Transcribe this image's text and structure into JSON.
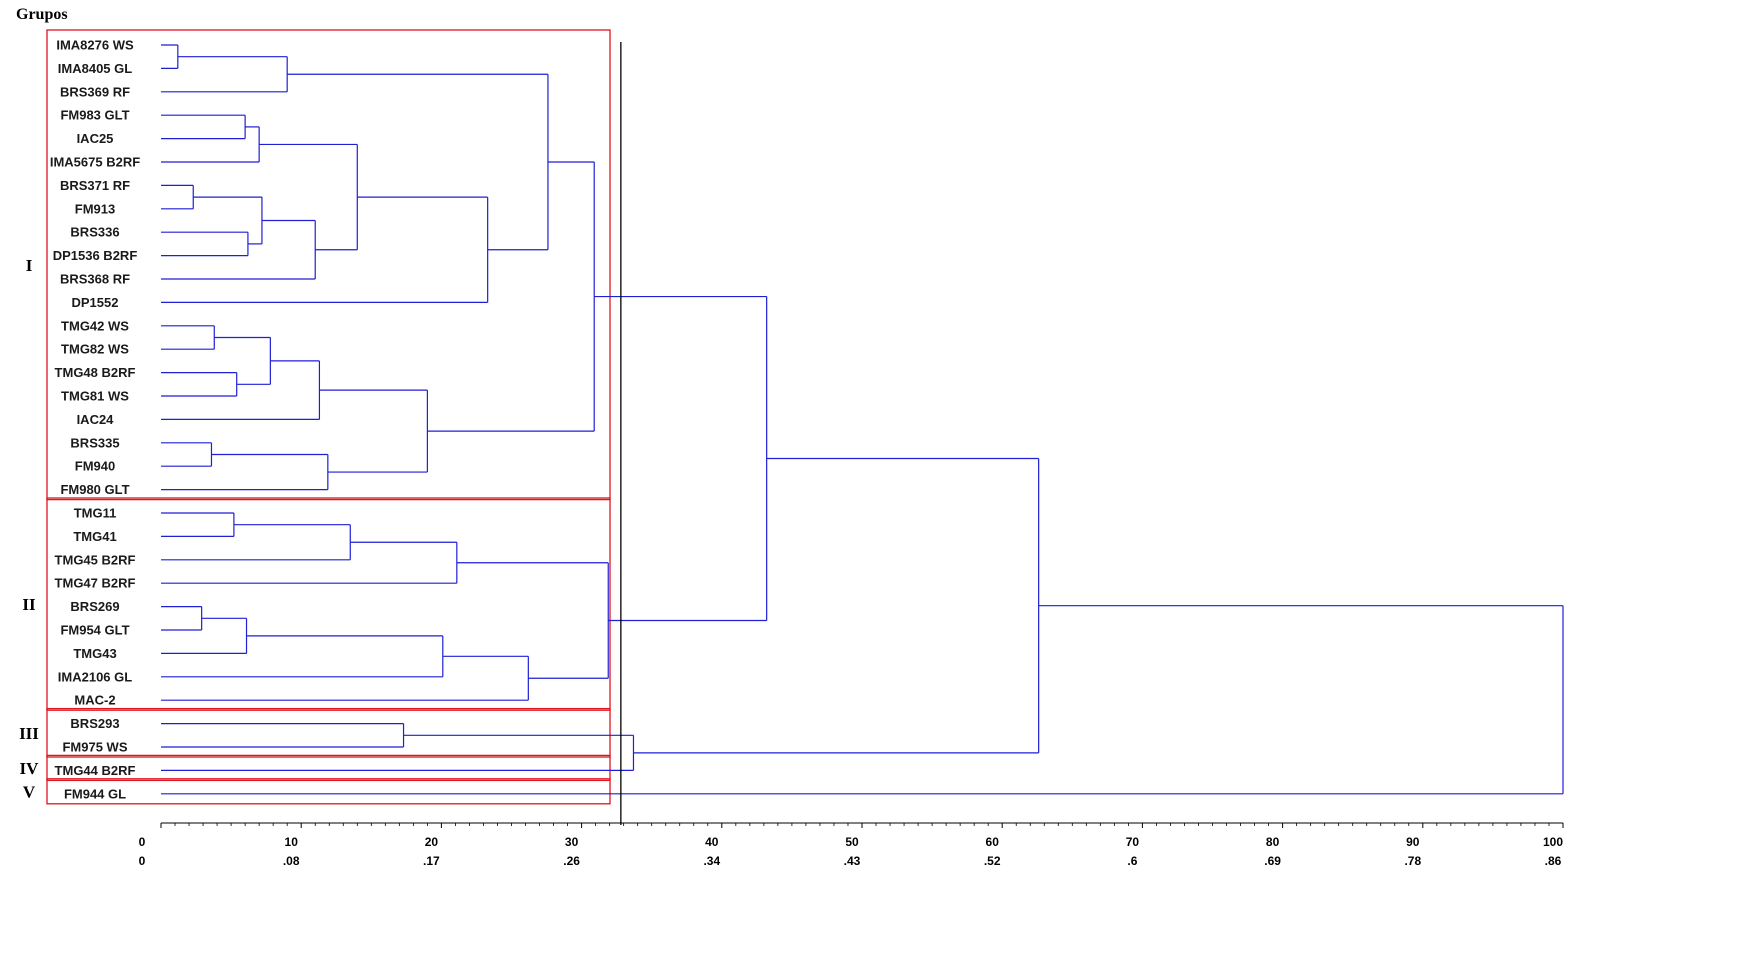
{
  "title": "Grupos",
  "colors": {
    "branch": "#1f1fd6",
    "group_box": "#e0141e",
    "cut_line": "#000000",
    "text": "#000000"
  },
  "chart_data": {
    "type": "dendrogram",
    "axis_top_ticks": [
      "0",
      "10",
      "20",
      "30",
      "40",
      "50",
      "60",
      "70",
      "80",
      "90",
      "100"
    ],
    "axis_bottom_ticks": [
      "0",
      ".08",
      ".17",
      ".26",
      ".34",
      ".43",
      ".52",
      ".6",
      ".69",
      ".78",
      ".86"
    ],
    "xlim": [
      0,
      100
    ],
    "cut_value": 32.8,
    "leaves": [
      "IMA8276 WS",
      "IMA8405 GL",
      "BRS369 RF",
      "FM983 GLT",
      "IAC25",
      "IMA5675 B2RF",
      "BRS371 RF",
      "FM913",
      "BRS336",
      "DP1536 B2RF",
      "BRS368 RF",
      "DP1552",
      "TMG42 WS",
      "TMG82 WS",
      "TMG48 B2RF",
      "TMG81 WS",
      "IAC24",
      "BRS335",
      "FM940",
      "FM980 GLT",
      "TMG11",
      "TMG41",
      "TMG45 B2RF",
      "TMG47 B2RF",
      "BRS269",
      "FM954 GLT",
      "TMG43",
      "IMA2106 GL",
      "MAC-2",
      "BRS293",
      "FM975 WS",
      "TMG44 B2RF",
      "FM944 GL"
    ],
    "merges": [
      {
        "a": 0,
        "b": 1,
        "h": 1.2
      },
      {
        "a": 33,
        "b": 2,
        "h": 9.0
      },
      {
        "a": 3,
        "b": 4,
        "h": 6.0
      },
      {
        "a": 35,
        "b": 5,
        "h": 7.0
      },
      {
        "a": 6,
        "b": 7,
        "h": 2.3
      },
      {
        "a": 8,
        "b": 9,
        "h": 6.2
      },
      {
        "a": 37,
        "b": 38,
        "h": 7.2
      },
      {
        "a": 39,
        "b": 10,
        "h": 11.0
      },
      {
        "a": 36,
        "b": 40,
        "h": 14.0
      },
      {
        "a": 41,
        "b": 11,
        "h": 23.3
      },
      {
        "a": 34,
        "b": 42,
        "h": 27.6
      },
      {
        "a": 12,
        "b": 13,
        "h": 3.8
      },
      {
        "a": 14,
        "b": 15,
        "h": 5.4
      },
      {
        "a": 44,
        "b": 45,
        "h": 7.8
      },
      {
        "a": 46,
        "b": 16,
        "h": 11.3
      },
      {
        "a": 17,
        "b": 18,
        "h": 3.6
      },
      {
        "a": 48,
        "b": 19,
        "h": 11.9
      },
      {
        "a": 47,
        "b": 49,
        "h": 19.0
      },
      {
        "a": 43,
        "b": 50,
        "h": 30.9
      },
      {
        "a": 20,
        "b": 21,
        "h": 5.2
      },
      {
        "a": 52,
        "b": 22,
        "h": 13.5
      },
      {
        "a": 53,
        "b": 23,
        "h": 21.1
      },
      {
        "a": 24,
        "b": 25,
        "h": 2.9
      },
      {
        "a": 55,
        "b": 26,
        "h": 6.1
      },
      {
        "a": 56,
        "b": 27,
        "h": 20.1
      },
      {
        "a": 57,
        "b": 28,
        "h": 26.2
      },
      {
        "a": 54,
        "b": 58,
        "h": 31.9
      },
      {
        "a": 51,
        "b": 59,
        "h": 43.2
      },
      {
        "a": 29,
        "b": 30,
        "h": 17.3
      },
      {
        "a": 61,
        "b": 31,
        "h": 33.7
      },
      {
        "a": 60,
        "b": 62,
        "h": 62.6
      },
      {
        "a": 63,
        "b": 32,
        "h": 100.0
      }
    ],
    "groups": [
      {
        "label": "I",
        "first_leaf": 0,
        "last_leaf": 19
      },
      {
        "label": "II",
        "first_leaf": 20,
        "last_leaf": 28
      },
      {
        "label": "III",
        "first_leaf": 29,
        "last_leaf": 30
      },
      {
        "label": "IV",
        "first_leaf": 31,
        "last_leaf": 31
      },
      {
        "label": "V",
        "first_leaf": 32,
        "last_leaf": 32
      }
    ]
  }
}
